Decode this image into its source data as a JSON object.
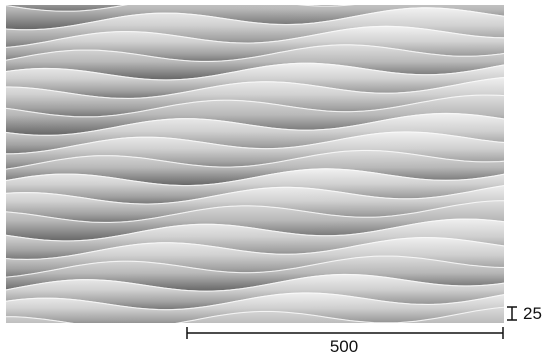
{
  "figure": {
    "panel_tone": "#c9c9c9",
    "highlight_tone": "#f2f2f2",
    "shadow_tone": "#6a6a6a",
    "dimensions": {
      "width_label": "500",
      "height_label": "25"
    },
    "strips": 19
  }
}
